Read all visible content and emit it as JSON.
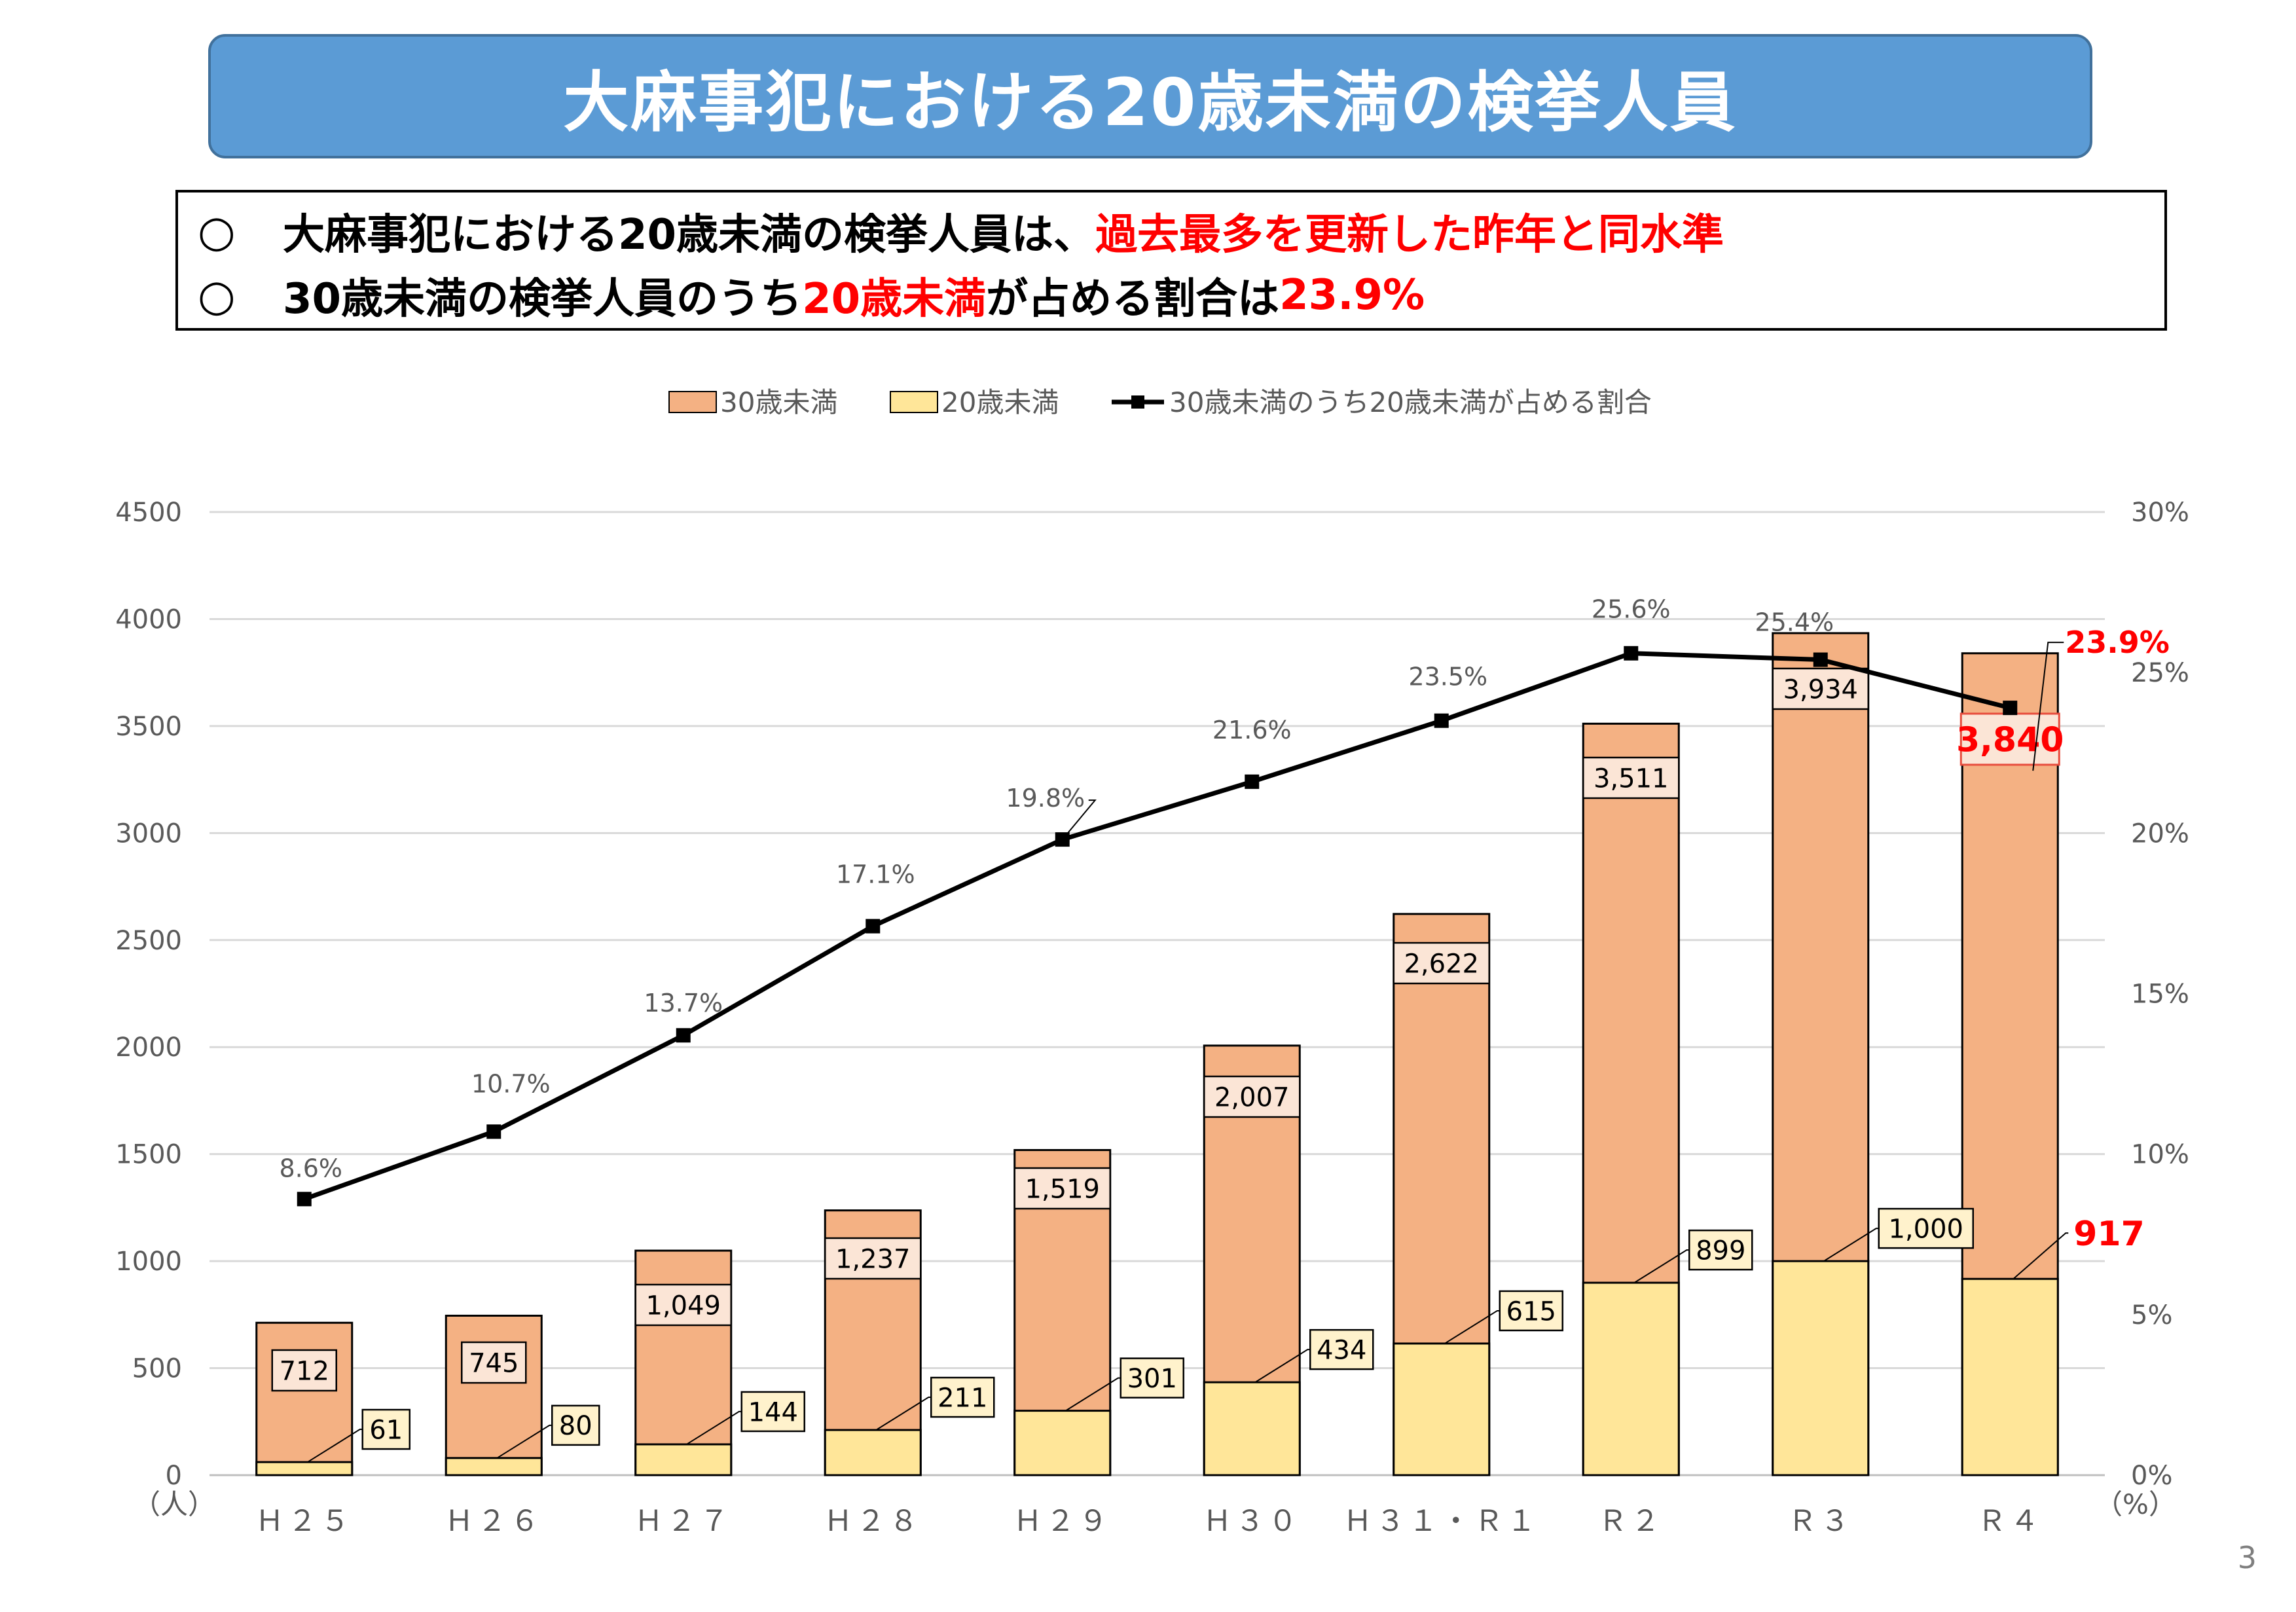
{
  "title": "大麻事犯における20歳未満の検挙人員",
  "summary": {
    "bullet_mark": "○",
    "line1": {
      "a": "大麻事犯における20歳未満の検挙人員は、",
      "b": "過去最多を更新した昨年と同水準"
    },
    "line2": {
      "a": "30歳未満の検挙人員のうち",
      "b": "20歳未満",
      "c": "が占める割合は",
      "d": "23.9%"
    }
  },
  "page_number": "3",
  "colors": {
    "under30": "#f4b183",
    "under20": "#ffe699",
    "line": "#000000",
    "highlight": "#ff0000",
    "banner": "#5b9bd5",
    "grid": "#d9d9d9",
    "axis_text": "#595959"
  },
  "chart_data": {
    "type": "bar",
    "stacked": false,
    "categories": [
      "Ｈ２５",
      "Ｈ２６",
      "Ｈ２７",
      "Ｈ２８",
      "Ｈ２９",
      "Ｈ３０",
      "Ｈ３１・Ｒ１",
      "Ｒ２",
      "Ｒ３",
      "Ｒ４"
    ],
    "series": [
      {
        "name": "30歳未満",
        "type": "bar",
        "axis": "left",
        "values": [
          712,
          745,
          1049,
          1237,
          1519,
          2007,
          2622,
          3511,
          3934,
          3840
        ],
        "labels": [
          "712",
          "745",
          "1,049",
          "1,237",
          "1,519",
          "2,007",
          "2,622",
          "3,511",
          "3,934",
          "3,840"
        ]
      },
      {
        "name": "20歳未満",
        "type": "bar",
        "axis": "left",
        "values": [
          61,
          80,
          144,
          211,
          301,
          434,
          615,
          899,
          1000,
          917
        ],
        "labels": [
          "61",
          "80",
          "144",
          "211",
          "301",
          "434",
          "615",
          "899",
          "1,000",
          "917"
        ]
      },
      {
        "name": "30歳未満のうち20歳未満が占める割合",
        "type": "line",
        "axis": "right",
        "values": [
          8.6,
          10.7,
          13.7,
          17.1,
          19.8,
          21.6,
          23.5,
          25.6,
          25.4,
          23.9
        ],
        "labels": [
          "8.6%",
          "10.7%",
          "13.7%",
          "17.1%",
          "19.8%",
          "21.6%",
          "23.5%",
          "25.6%",
          "25.4%",
          "23.9%"
        ]
      }
    ],
    "left_axis": {
      "min": 0,
      "max": 4500,
      "step": 500,
      "unit": "（人）",
      "ticks": [
        "0",
        "500",
        "1000",
        "1500",
        "2000",
        "2500",
        "3000",
        "3500",
        "4000",
        "4500"
      ]
    },
    "right_axis": {
      "min": 0,
      "max": 30,
      "step": 5,
      "unit": "（%）",
      "ticks": [
        "0%",
        "5%",
        "10%",
        "15%",
        "20%",
        "25%",
        "30%"
      ]
    },
    "legend_position": "top-center",
    "grid": true,
    "highlight_category": "Ｒ４"
  }
}
